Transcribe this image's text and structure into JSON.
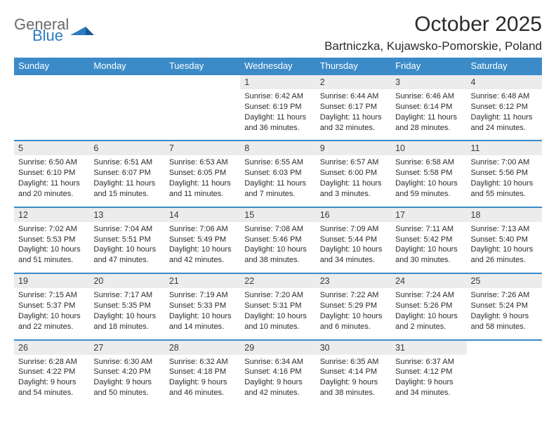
{
  "brand": {
    "text1": "General",
    "text2": "Blue",
    "color_general": "#6a6a6a",
    "color_blue": "#2f7bbf"
  },
  "title": "October 2025",
  "location": "Bartniczka, Kujawsko-Pomorskie, Poland",
  "colors": {
    "header_bg": "#3b8bc8",
    "header_text": "#ffffff",
    "daynum_bg": "#ececec",
    "border": "#3b8bc8",
    "text": "#2b2b2b"
  },
  "weekdays": [
    "Sunday",
    "Monday",
    "Tuesday",
    "Wednesday",
    "Thursday",
    "Friday",
    "Saturday"
  ],
  "weeks": [
    [
      null,
      null,
      null,
      {
        "n": "1",
        "sr": "6:42 AM",
        "ss": "6:19 PM",
        "dl": "11 hours and 36 minutes."
      },
      {
        "n": "2",
        "sr": "6:44 AM",
        "ss": "6:17 PM",
        "dl": "11 hours and 32 minutes."
      },
      {
        "n": "3",
        "sr": "6:46 AM",
        "ss": "6:14 PM",
        "dl": "11 hours and 28 minutes."
      },
      {
        "n": "4",
        "sr": "6:48 AM",
        "ss": "6:12 PM",
        "dl": "11 hours and 24 minutes."
      }
    ],
    [
      {
        "n": "5",
        "sr": "6:50 AM",
        "ss": "6:10 PM",
        "dl": "11 hours and 20 minutes."
      },
      {
        "n": "6",
        "sr": "6:51 AM",
        "ss": "6:07 PM",
        "dl": "11 hours and 15 minutes."
      },
      {
        "n": "7",
        "sr": "6:53 AM",
        "ss": "6:05 PM",
        "dl": "11 hours and 11 minutes."
      },
      {
        "n": "8",
        "sr": "6:55 AM",
        "ss": "6:03 PM",
        "dl": "11 hours and 7 minutes."
      },
      {
        "n": "9",
        "sr": "6:57 AM",
        "ss": "6:00 PM",
        "dl": "11 hours and 3 minutes."
      },
      {
        "n": "10",
        "sr": "6:58 AM",
        "ss": "5:58 PM",
        "dl": "10 hours and 59 minutes."
      },
      {
        "n": "11",
        "sr": "7:00 AM",
        "ss": "5:56 PM",
        "dl": "10 hours and 55 minutes."
      }
    ],
    [
      {
        "n": "12",
        "sr": "7:02 AM",
        "ss": "5:53 PM",
        "dl": "10 hours and 51 minutes."
      },
      {
        "n": "13",
        "sr": "7:04 AM",
        "ss": "5:51 PM",
        "dl": "10 hours and 47 minutes."
      },
      {
        "n": "14",
        "sr": "7:06 AM",
        "ss": "5:49 PM",
        "dl": "10 hours and 42 minutes."
      },
      {
        "n": "15",
        "sr": "7:08 AM",
        "ss": "5:46 PM",
        "dl": "10 hours and 38 minutes."
      },
      {
        "n": "16",
        "sr": "7:09 AM",
        "ss": "5:44 PM",
        "dl": "10 hours and 34 minutes."
      },
      {
        "n": "17",
        "sr": "7:11 AM",
        "ss": "5:42 PM",
        "dl": "10 hours and 30 minutes."
      },
      {
        "n": "18",
        "sr": "7:13 AM",
        "ss": "5:40 PM",
        "dl": "10 hours and 26 minutes."
      }
    ],
    [
      {
        "n": "19",
        "sr": "7:15 AM",
        "ss": "5:37 PM",
        "dl": "10 hours and 22 minutes."
      },
      {
        "n": "20",
        "sr": "7:17 AM",
        "ss": "5:35 PM",
        "dl": "10 hours and 18 minutes."
      },
      {
        "n": "21",
        "sr": "7:19 AM",
        "ss": "5:33 PM",
        "dl": "10 hours and 14 minutes."
      },
      {
        "n": "22",
        "sr": "7:20 AM",
        "ss": "5:31 PM",
        "dl": "10 hours and 10 minutes."
      },
      {
        "n": "23",
        "sr": "7:22 AM",
        "ss": "5:29 PM",
        "dl": "10 hours and 6 minutes."
      },
      {
        "n": "24",
        "sr": "7:24 AM",
        "ss": "5:26 PM",
        "dl": "10 hours and 2 minutes."
      },
      {
        "n": "25",
        "sr": "7:26 AM",
        "ss": "5:24 PM",
        "dl": "9 hours and 58 minutes."
      }
    ],
    [
      {
        "n": "26",
        "sr": "6:28 AM",
        "ss": "4:22 PM",
        "dl": "9 hours and 54 minutes."
      },
      {
        "n": "27",
        "sr": "6:30 AM",
        "ss": "4:20 PM",
        "dl": "9 hours and 50 minutes."
      },
      {
        "n": "28",
        "sr": "6:32 AM",
        "ss": "4:18 PM",
        "dl": "9 hours and 46 minutes."
      },
      {
        "n": "29",
        "sr": "6:34 AM",
        "ss": "4:16 PM",
        "dl": "9 hours and 42 minutes."
      },
      {
        "n": "30",
        "sr": "6:35 AM",
        "ss": "4:14 PM",
        "dl": "9 hours and 38 minutes."
      },
      {
        "n": "31",
        "sr": "6:37 AM",
        "ss": "4:12 PM",
        "dl": "9 hours and 34 minutes."
      },
      null
    ]
  ],
  "labels": {
    "sunrise": "Sunrise:",
    "sunset": "Sunset:",
    "daylight": "Daylight:"
  }
}
